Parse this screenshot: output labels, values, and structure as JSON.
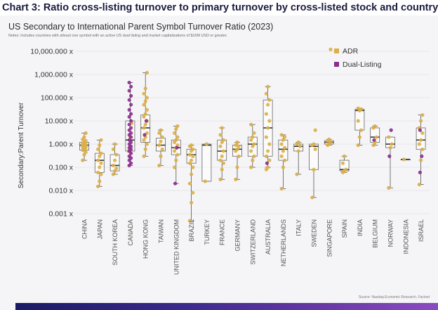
{
  "heading": "Chart 3: Ratio cross-listing turnover to primary turnover by cross-listed stock and country",
  "chart_data": {
    "type": "box",
    "title": "US Secondary to International Parent Symbol Turnover Ratio (2023)",
    "subtitle": "Notes: Includes countries with atleast one symbol with an active US dual listing and market capitalizations of $10M USD or greater.",
    "source": "Source: Nasdaq Economic Research, Factset",
    "ylabel": "Secondary:Parent Turnover",
    "yscale": "log",
    "ylim": [
      0.0005,
      15000
    ],
    "yticks": [
      {
        "value": 10000,
        "label": "10,000.000 x"
      },
      {
        "value": 1000,
        "label": "1,000.000 x"
      },
      {
        "value": 100,
        "label": "100.000 x"
      },
      {
        "value": 10,
        "label": "10.000 x"
      },
      {
        "value": 1,
        "label": "1.000 x"
      },
      {
        "value": 0.1,
        "label": "0.100 x"
      },
      {
        "value": 0.01,
        "label": "0.010 x"
      },
      {
        "value": 0.001,
        "label": "0.001 x"
      }
    ],
    "legend": {
      "position": "top-right",
      "entries": [
        {
          "key": "adr",
          "label": "ADR",
          "color": "#dcaf48"
        },
        {
          "key": "dual",
          "label": "Dual-Listing",
          "color": "#8a2c8a"
        }
      ]
    },
    "categories": [
      {
        "name": "CHINA",
        "min": 0.2,
        "q1": 0.55,
        "median": 0.9,
        "q3": 1.2,
        "max": 3.0,
        "adr": [
          0.2,
          0.35,
          0.45,
          0.55,
          0.6,
          0.7,
          0.75,
          0.8,
          0.85,
          0.9,
          0.95,
          1.0,
          1.1,
          1.2,
          1.4,
          1.6,
          2.0,
          3.0
        ],
        "dual": []
      },
      {
        "name": "JAPAN",
        "min": 0.015,
        "q1": 0.06,
        "median": 0.2,
        "q3": 0.4,
        "max": 1.5,
        "adr": [
          0.015,
          0.025,
          0.05,
          0.06,
          0.1,
          0.15,
          0.2,
          0.3,
          0.4,
          0.6,
          0.9,
          1.5
        ],
        "dual": []
      },
      {
        "name": "SOUTH KOREA",
        "min": 0.05,
        "q1": 0.07,
        "median": 0.12,
        "q3": 0.35,
        "max": 1.0,
        "adr": [
          0.05,
          0.07,
          0.09,
          0.12,
          0.2,
          0.35,
          0.6,
          1.0
        ],
        "dual": []
      },
      {
        "name": "CANADA",
        "min": 0.12,
        "q1": 0.5,
        "median": 1.5,
        "q3": 10.0,
        "max": 450,
        "adr": [
          0.5,
          2.0,
          8.0
        ],
        "dual": [
          0.12,
          0.15,
          0.2,
          0.25,
          0.3,
          0.4,
          0.5,
          0.6,
          0.7,
          0.8,
          1.0,
          1.2,
          1.5,
          2.0,
          2.5,
          3.0,
          4.0,
          5.0,
          7.0,
          10.0,
          15.0,
          20.0,
          30.0,
          50.0,
          80.0,
          120,
          200,
          300,
          450
        ]
      },
      {
        "name": "HONG KONG",
        "min": 0.3,
        "q1": 1.2,
        "median": 5.0,
        "q3": 18.0,
        "max": 1200,
        "adr": [
          0.3,
          0.6,
          1.0,
          1.5,
          2.0,
          3.0,
          5.0,
          7.0,
          10.0,
          15.0,
          20.0,
          30.0,
          50.0,
          70.0,
          100,
          150,
          250,
          1200
        ],
        "dual": [
          2.5,
          10.0
        ]
      },
      {
        "name": "TAIWAN",
        "min": 0.12,
        "q1": 0.5,
        "median": 0.9,
        "q3": 1.8,
        "max": 4.0,
        "adr": [
          0.12,
          0.3,
          0.6,
          0.9,
          1.3,
          2.0,
          3.0,
          4.0
        ],
        "dual": []
      },
      {
        "name": "UNITED KINGDOM",
        "min": 0.02,
        "q1": 0.35,
        "median": 0.7,
        "q3": 1.5,
        "max": 6.0,
        "adr": [
          0.1,
          0.2,
          0.35,
          0.5,
          0.7,
          0.9,
          1.2,
          1.5,
          2.0,
          3.0,
          4.5,
          6.0
        ],
        "dual": [
          0.02,
          0.7
        ]
      },
      {
        "name": "BRAZIL",
        "min": 0.0005,
        "q1": 0.15,
        "median": 0.35,
        "q3": 0.6,
        "max": 0.9,
        "adr": [
          0.0005,
          0.003,
          0.008,
          0.02,
          0.05,
          0.1,
          0.15,
          0.2,
          0.3,
          0.35,
          0.5,
          0.6,
          0.8,
          0.9
        ],
        "dual": []
      },
      {
        "name": "TURKEY",
        "min": 0.025,
        "q1": 0.025,
        "median": 0.9,
        "q3": 1.0,
        "max": 1.0,
        "adr": [
          0.025,
          1.0
        ],
        "dual": []
      },
      {
        "name": "FRANCE",
        "min": 0.03,
        "q1": 0.2,
        "median": 0.5,
        "q3": 1.5,
        "max": 5.0,
        "adr": [
          0.03,
          0.08,
          0.15,
          0.2,
          0.3,
          0.5,
          0.8,
          1.2,
          1.5,
          2.5,
          5.0
        ],
        "dual": []
      },
      {
        "name": "GERMANY",
        "min": 0.03,
        "q1": 0.3,
        "median": 0.6,
        "q3": 0.9,
        "max": 1.2,
        "adr": [
          0.03,
          0.1,
          0.3,
          0.5,
          0.6,
          0.8,
          0.9,
          1.2
        ],
        "dual": []
      },
      {
        "name": "SWITZERLAND",
        "min": 0.1,
        "q1": 0.3,
        "median": 1.0,
        "q3": 2.0,
        "max": 7.0,
        "adr": [
          0.1,
          0.2,
          0.3,
          0.5,
          0.8,
          1.0,
          1.5,
          2.0,
          3.0,
          7.0
        ],
        "dual": []
      },
      {
        "name": "AUSTRALIA",
        "min": 0.1,
        "q1": 0.3,
        "median": 5.0,
        "q3": 80.0,
        "max": 300,
        "adr": [
          0.08,
          0.1,
          0.2,
          0.3,
          0.5,
          1.0,
          2.0,
          5.0,
          10.0,
          20.0,
          50.0,
          80.0,
          150,
          300
        ],
        "dual": [
          0.15
        ]
      },
      {
        "name": "NETHERLANDS",
        "min": 0.012,
        "q1": 0.2,
        "median": 0.6,
        "q3": 1.5,
        "max": 2.5,
        "adr": [
          0.012,
          0.1,
          0.2,
          0.3,
          0.5,
          0.7,
          1.0,
          1.5,
          2.0,
          2.5
        ],
        "dual": []
      },
      {
        "name": "ITALY",
        "min": 0.05,
        "q1": 0.5,
        "median": 0.8,
        "q3": 1.0,
        "max": 1.2,
        "adr": [
          0.05,
          0.5,
          0.8,
          1.0,
          1.2
        ],
        "dual": []
      },
      {
        "name": "SWEDEN",
        "min": 0.005,
        "q1": 0.08,
        "median": 0.8,
        "q3": 1.0,
        "max": 1.0,
        "adr": [
          0.005,
          0.08,
          0.6,
          0.9,
          1.0,
          4.0
        ],
        "dual": []
      },
      {
        "name": "SINGAPORE",
        "min": 0.9,
        "q1": 1.0,
        "median": 1.2,
        "q3": 1.4,
        "max": 1.6,
        "adr": [
          0.9,
          1.0,
          1.2,
          1.4,
          1.6,
          12000
        ],
        "dual": []
      },
      {
        "name": "SPAIN",
        "min": 0.06,
        "q1": 0.07,
        "median": 0.08,
        "q3": 0.2,
        "max": 0.3,
        "adr": [
          0.06,
          0.07,
          0.08,
          0.15,
          0.3
        ],
        "dual": []
      },
      {
        "name": "INDIA",
        "min": 0.9,
        "q1": 4.0,
        "median": 28.0,
        "q3": 32.0,
        "max": 35.0,
        "adr": [
          0.9,
          2.0,
          4.0,
          10.0,
          28.0,
          32.0,
          35.0
        ],
        "dual": []
      },
      {
        "name": "BELGIUM",
        "min": 0.9,
        "q1": 1.2,
        "median": 2.0,
        "q3": 5.0,
        "max": 6.0,
        "adr": [
          0.9,
          1.2,
          2.0,
          5.0,
          6.0
        ],
        "dual": [
          1.5
        ]
      },
      {
        "name": "NORWAY",
        "min": 0.013,
        "q1": 0.7,
        "median": 1.0,
        "q3": 2.0,
        "max": 2.0,
        "adr": [
          0.013,
          0.7,
          1.0,
          2.0
        ],
        "dual": [
          0.3,
          4.0
        ]
      },
      {
        "name": "INDONESIA",
        "min": 0.22,
        "q1": 0.22,
        "median": 0.22,
        "q3": 0.22,
        "max": 0.22,
        "adr": [
          0.22
        ],
        "dual": []
      },
      {
        "name": "ISRAEL",
        "min": 0.018,
        "q1": 0.6,
        "median": 1.5,
        "q3": 5.0,
        "max": 18.0,
        "adr": [
          0.018,
          0.2,
          0.6,
          1.0,
          1.5,
          3.0,
          5.0,
          10.0,
          18.0
        ],
        "dual": [
          0.06,
          0.3,
          4.0
        ]
      }
    ]
  }
}
